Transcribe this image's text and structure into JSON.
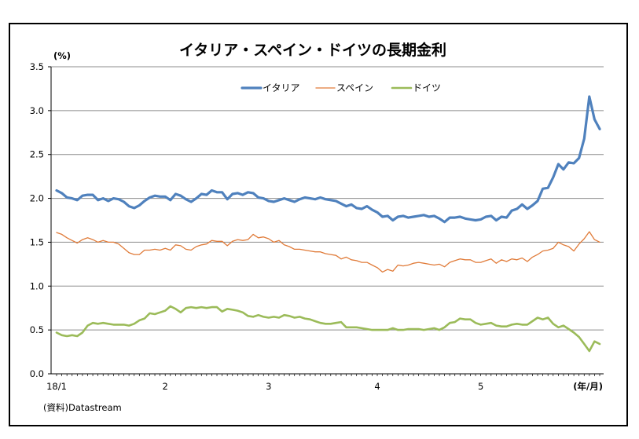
{
  "chart_data": {
    "type": "line",
    "title": "イタリア・スペイン・ドイツの長期金利",
    "ylabel": "(%)",
    "xlabel": "(年/月)",
    "source": "(資料)Datastream",
    "ylim": [
      0,
      3.5
    ],
    "yticks": [
      "0.0",
      "0.5",
      "1.0",
      "1.5",
      "2.0",
      "2.5",
      "3.0",
      "3.5"
    ],
    "x_tick_labels": [
      "18/1",
      "2",
      "3",
      "4",
      "5"
    ],
    "x_tick_positions": [
      0,
      21,
      41,
      62,
      82
    ],
    "x_count": 106,
    "grid": "horizontal",
    "legend": "top-center",
    "series": [
      {
        "name": "イタリア",
        "color": "#4F81BD",
        "values": [
          2.09,
          2.06,
          2.01,
          2.0,
          1.98,
          2.03,
          2.04,
          2.04,
          1.98,
          2.0,
          1.97,
          2.0,
          1.99,
          1.96,
          1.91,
          1.89,
          1.92,
          1.97,
          2.01,
          2.03,
          2.02,
          2.02,
          1.98,
          2.05,
          2.03,
          1.99,
          1.96,
          2.0,
          2.05,
          2.04,
          2.09,
          2.07,
          2.07,
          1.99,
          2.05,
          2.06,
          2.04,
          2.07,
          2.06,
          2.01,
          2.0,
          1.97,
          1.96,
          1.98,
          2.0,
          1.98,
          1.96,
          1.99,
          2.01,
          2.0,
          1.99,
          2.01,
          1.99,
          1.98,
          1.97,
          1.94,
          1.91,
          1.93,
          1.89,
          1.88,
          1.91,
          1.87,
          1.84,
          1.79,
          1.8,
          1.75,
          1.79,
          1.8,
          1.78,
          1.79,
          1.8,
          1.81,
          1.79,
          1.8,
          1.77,
          1.73,
          1.78,
          1.78,
          1.79,
          1.77,
          1.76,
          1.75,
          1.76,
          1.79,
          1.8,
          1.75,
          1.79,
          1.78,
          1.86,
          1.88,
          1.93,
          1.88,
          1.92,
          1.97,
          2.11,
          2.12,
          2.24,
          2.39,
          2.33,
          2.41,
          2.4,
          2.46,
          2.68,
          3.16,
          2.9,
          2.79
        ]
      },
      {
        "name": "スペイン",
        "color": "#E07B39",
        "values": [
          1.61,
          1.59,
          1.55,
          1.52,
          1.49,
          1.53,
          1.55,
          1.53,
          1.5,
          1.52,
          1.5,
          1.5,
          1.48,
          1.43,
          1.38,
          1.36,
          1.36,
          1.41,
          1.41,
          1.42,
          1.41,
          1.43,
          1.41,
          1.47,
          1.46,
          1.42,
          1.41,
          1.45,
          1.47,
          1.48,
          1.52,
          1.51,
          1.51,
          1.46,
          1.51,
          1.53,
          1.52,
          1.53,
          1.59,
          1.55,
          1.56,
          1.54,
          1.5,
          1.52,
          1.47,
          1.45,
          1.42,
          1.42,
          1.41,
          1.4,
          1.39,
          1.39,
          1.37,
          1.36,
          1.35,
          1.31,
          1.33,
          1.3,
          1.29,
          1.27,
          1.27,
          1.24,
          1.21,
          1.16,
          1.19,
          1.17,
          1.24,
          1.23,
          1.24,
          1.26,
          1.27,
          1.26,
          1.25,
          1.24,
          1.25,
          1.22,
          1.27,
          1.29,
          1.31,
          1.3,
          1.3,
          1.27,
          1.27,
          1.29,
          1.31,
          1.26,
          1.3,
          1.28,
          1.31,
          1.3,
          1.32,
          1.28,
          1.33,
          1.36,
          1.4,
          1.41,
          1.43,
          1.5,
          1.47,
          1.45,
          1.4,
          1.48,
          1.54,
          1.62,
          1.53,
          1.5
        ]
      },
      {
        "name": "ドイツ",
        "color": "#9BBB59",
        "values": [
          0.47,
          0.44,
          0.43,
          0.44,
          0.43,
          0.47,
          0.55,
          0.58,
          0.57,
          0.58,
          0.57,
          0.56,
          0.56,
          0.56,
          0.55,
          0.57,
          0.61,
          0.63,
          0.69,
          0.68,
          0.7,
          0.72,
          0.77,
          0.74,
          0.7,
          0.75,
          0.76,
          0.75,
          0.76,
          0.75,
          0.76,
          0.76,
          0.71,
          0.74,
          0.73,
          0.72,
          0.7,
          0.66,
          0.65,
          0.67,
          0.65,
          0.64,
          0.65,
          0.64,
          0.67,
          0.66,
          0.64,
          0.65,
          0.63,
          0.62,
          0.6,
          0.58,
          0.57,
          0.57,
          0.58,
          0.59,
          0.53,
          0.53,
          0.53,
          0.52,
          0.51,
          0.5,
          0.5,
          0.5,
          0.5,
          0.52,
          0.5,
          0.5,
          0.51,
          0.51,
          0.51,
          0.5,
          0.51,
          0.52,
          0.5,
          0.53,
          0.58,
          0.59,
          0.63,
          0.62,
          0.62,
          0.58,
          0.56,
          0.57,
          0.58,
          0.55,
          0.54,
          0.54,
          0.56,
          0.57,
          0.56,
          0.56,
          0.6,
          0.64,
          0.62,
          0.64,
          0.57,
          0.53,
          0.55,
          0.51,
          0.47,
          0.42,
          0.34,
          0.26,
          0.37,
          0.34
        ]
      }
    ]
  }
}
